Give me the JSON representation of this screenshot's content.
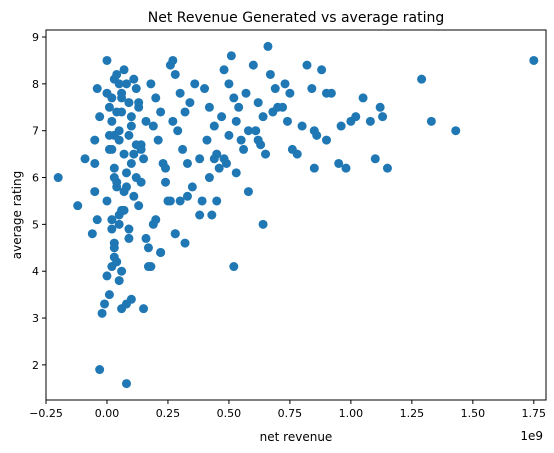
{
  "chart_data": {
    "type": "scatter",
    "title": "Net Revenue Generated vs average rating",
    "xlabel": "net revenue",
    "ylabel": "average rating",
    "x_scale_label": "1e9",
    "x_unit_multiplier": 1000000000,
    "xlim": [
      -0.25,
      1.8
    ],
    "ylim": [
      1.25,
      9.15
    ],
    "x_ticks": [
      -0.25,
      0.0,
      0.25,
      0.5,
      0.75,
      1.0,
      1.25,
      1.5,
      1.75
    ],
    "x_tick_labels": [
      "−0.25",
      "0.00",
      "0.25",
      "0.50",
      "0.75",
      "1.00",
      "1.25",
      "1.50",
      "1.75"
    ],
    "y_ticks": [
      2,
      3,
      4,
      5,
      6,
      7,
      8,
      9
    ],
    "y_tick_labels": [
      "2",
      "3",
      "4",
      "5",
      "6",
      "7",
      "8",
      "9"
    ],
    "grid": false,
    "legend": "none",
    "marker_color": "#1f77b4",
    "points_x_billions": [
      -0.2,
      -0.12,
      -0.09,
      -0.06,
      -0.05,
      -0.03,
      -0.02,
      -0.04,
      -0.01,
      -0.05,
      -0.03,
      -0.04,
      -0.05,
      0.01,
      0.02,
      0.03,
      0.0,
      0.04,
      0.05,
      0.02,
      0.06,
      0.01,
      0.03,
      0.04,
      0.0,
      0.05,
      0.02,
      0.03,
      0.07,
      0.08,
      0.06,
      0.09,
      0.1,
      0.05,
      0.07,
      0.08,
      0.04,
      0.06,
      0.03,
      0.02,
      0.0,
      0.01,
      0.11,
      0.12,
      0.13,
      0.1,
      0.09,
      0.14,
      0.15,
      0.12,
      0.11,
      0.13,
      0.16,
      0.17,
      0.1,
      0.08,
      0.14,
      0.18,
      0.2,
      0.22,
      0.19,
      0.21,
      0.23,
      0.24,
      0.25,
      0.2,
      0.18,
      0.22,
      0.26,
      0.27,
      0.24,
      0.19,
      0.28,
      0.3,
      0.32,
      0.29,
      0.31,
      0.33,
      0.35,
      0.3,
      0.34,
      0.36,
      0.28,
      0.32,
      0.38,
      0.27,
      0.4,
      0.42,
      0.44,
      0.41,
      0.45,
      0.46,
      0.48,
      0.43,
      0.47,
      0.42,
      0.39,
      0.44,
      0.5,
      0.52,
      0.51,
      0.53,
      0.55,
      0.54,
      0.56,
      0.58,
      0.5,
      0.49,
      0.52,
      0.57,
      0.6,
      0.62,
      0.64,
      0.66,
      0.61,
      0.63,
      0.65,
      0.67,
      0.69,
      0.7,
      0.68,
      0.62,
      0.72,
      0.74,
      0.76,
      0.78,
      0.73,
      0.75,
      0.8,
      0.82,
      0.84,
      0.86,
      0.88,
      0.9,
      0.92,
      0.85,
      0.95,
      0.98,
      1.0,
      1.02,
      1.05,
      1.08,
      1.1,
      1.12,
      1.13,
      1.15,
      1.29,
      1.33,
      1.43,
      1.75,
      0.04,
      0.05,
      0.03,
      0.06,
      0.08,
      0.07,
      0.09,
      0.05,
      0.02,
      0.04,
      0.03,
      0.06,
      0.01,
      0.15,
      0.17,
      0.22,
      0.26,
      0.28,
      0.33,
      0.38,
      0.45,
      0.53,
      0.64,
      0.85,
      0.58,
      0.48,
      0.9,
      0.96,
      0.07,
      0.09,
      0.12,
      0.0,
      0.03,
      0.05,
      0.08,
      0.11,
      0.13,
      0.16,
      0.06,
      0.02,
      0.1,
      0.14
    ],
    "points_y": [
      6.0,
      5.4,
      6.4,
      4.8,
      5.7,
      1.9,
      3.1,
      5.1,
      3.3,
      6.8,
      7.3,
      7.9,
      6.3,
      7.5,
      7.2,
      6.9,
      8.5,
      8.2,
      8.0,
      7.7,
      7.4,
      6.6,
      6.2,
      5.8,
      5.5,
      5.2,
      4.9,
      4.6,
      8.3,
      8.0,
      7.8,
      7.6,
      7.1,
      6.8,
      6.5,
      6.1,
      5.9,
      5.3,
      4.3,
      4.1,
      3.9,
      3.5,
      8.1,
      7.9,
      7.5,
      7.3,
      6.9,
      6.7,
      6.4,
      6.0,
      5.6,
      5.4,
      4.7,
      4.5,
      3.4,
      1.6,
      6.6,
      8.0,
      7.7,
      7.4,
      7.1,
      6.8,
      6.3,
      5.9,
      5.5,
      5.1,
      4.1,
      4.4,
      8.4,
      8.5,
      6.2,
      5.0,
      8.2,
      7.8,
      7.4,
      7.0,
      6.6,
      6.3,
      5.8,
      5.5,
      7.6,
      8.0,
      4.8,
      4.6,
      6.4,
      7.2,
      7.9,
      7.5,
      7.1,
      6.8,
      6.5,
      6.2,
      8.3,
      5.2,
      7.3,
      6.0,
      5.5,
      6.4,
      8.0,
      7.7,
      8.6,
      7.2,
      6.8,
      7.5,
      6.6,
      7.0,
      6.9,
      6.3,
      4.1,
      7.8,
      8.4,
      7.6,
      7.3,
      8.8,
      7.0,
      6.7,
      6.5,
      8.2,
      7.9,
      7.5,
      7.4,
      6.8,
      7.5,
      7.2,
      6.6,
      6.5,
      8.0,
      7.8,
      7.1,
      8.4,
      7.9,
      6.9,
      8.3,
      7.8,
      7.8,
      7.0,
      6.3,
      6.2,
      7.2,
      7.3,
      7.7,
      7.2,
      6.4,
      7.5,
      7.3,
      6.2,
      8.1,
      7.2,
      7.0,
      8.5,
      4.2,
      3.8,
      4.5,
      3.2,
      3.3,
      5.7,
      4.9,
      5.0,
      6.6,
      7.4,
      8.1,
      7.7,
      6.9,
      3.2,
      4.1,
      4.4,
      5.5,
      4.8,
      5.6,
      5.2,
      5.5,
      6.1,
      5.0,
      6.2,
      5.7,
      6.4,
      6.8,
      7.1,
      5.3,
      4.7,
      6.7,
      7.8,
      6.0,
      7.0,
      5.8,
      6.5,
      7.6,
      7.2,
      4.0,
      5.1,
      6.3,
      5.9
    ]
  }
}
